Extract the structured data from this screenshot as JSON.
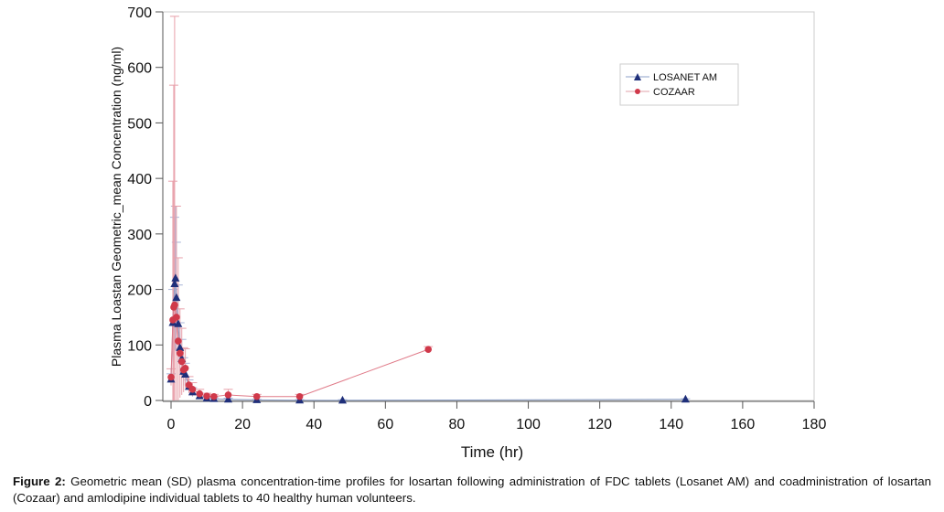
{
  "chart_data": {
    "type": "line",
    "xlabel": "Time (hr)",
    "ylabel": "Plasma Loastan Geometric_mean Concentration (ng/ml)",
    "xlim": [
      0,
      180
    ],
    "ylim": [
      0,
      700
    ],
    "xticks": [
      0,
      20,
      40,
      60,
      80,
      100,
      120,
      140,
      160,
      180
    ],
    "yticks": [
      0,
      100,
      200,
      300,
      400,
      500,
      600,
      700
    ],
    "grid": false,
    "legend_position": "top-right",
    "series": [
      {
        "name": "LOSANET AM",
        "color": "#1f2f7a",
        "marker": "triangle",
        "x": [
          0,
          0.5,
          1,
          1.25,
          1.5,
          2,
          2.5,
          3,
          3.5,
          4,
          5,
          6,
          8,
          10,
          12,
          16,
          24,
          36,
          48,
          144
        ],
        "y": [
          38,
          140,
          210,
          220,
          185,
          138,
          95,
          75,
          52,
          47,
          25,
          15,
          8,
          4,
          3,
          2,
          1,
          0.5,
          0.3,
          2
        ],
        "sd": [
          10,
          60,
          120,
          130,
          100,
          70,
          45,
          35,
          25,
          20,
          12,
          8,
          5,
          3,
          2,
          2,
          1,
          1,
          1,
          1
        ]
      },
      {
        "name": "COZAAR",
        "color": "#d0394a",
        "marker": "circle",
        "x": [
          0,
          0.5,
          0.75,
          1,
          1.5,
          2,
          2.5,
          3,
          3.5,
          4,
          5,
          6,
          8,
          10,
          12,
          16,
          24,
          36,
          72
        ],
        "y": [
          42,
          145,
          168,
          172,
          150,
          107,
          85,
          70,
          55,
          58,
          28,
          20,
          12,
          8,
          7,
          10,
          7,
          7,
          92
        ],
        "sd": [
          15,
          250,
          400,
          520,
          200,
          150,
          80,
          60,
          40,
          35,
          15,
          12,
          8,
          5,
          4,
          10,
          4,
          4,
          5
        ]
      }
    ]
  },
  "caption": {
    "label": "Figure 2:",
    "text": " Geometric mean (SD) plasma concentration-time profiles for losartan following administration of FDC tablets (Losanet AM) and coadministration of losartan (Cozaar) and amlodipine individual tablets to 40 healthy human volunteers."
  }
}
